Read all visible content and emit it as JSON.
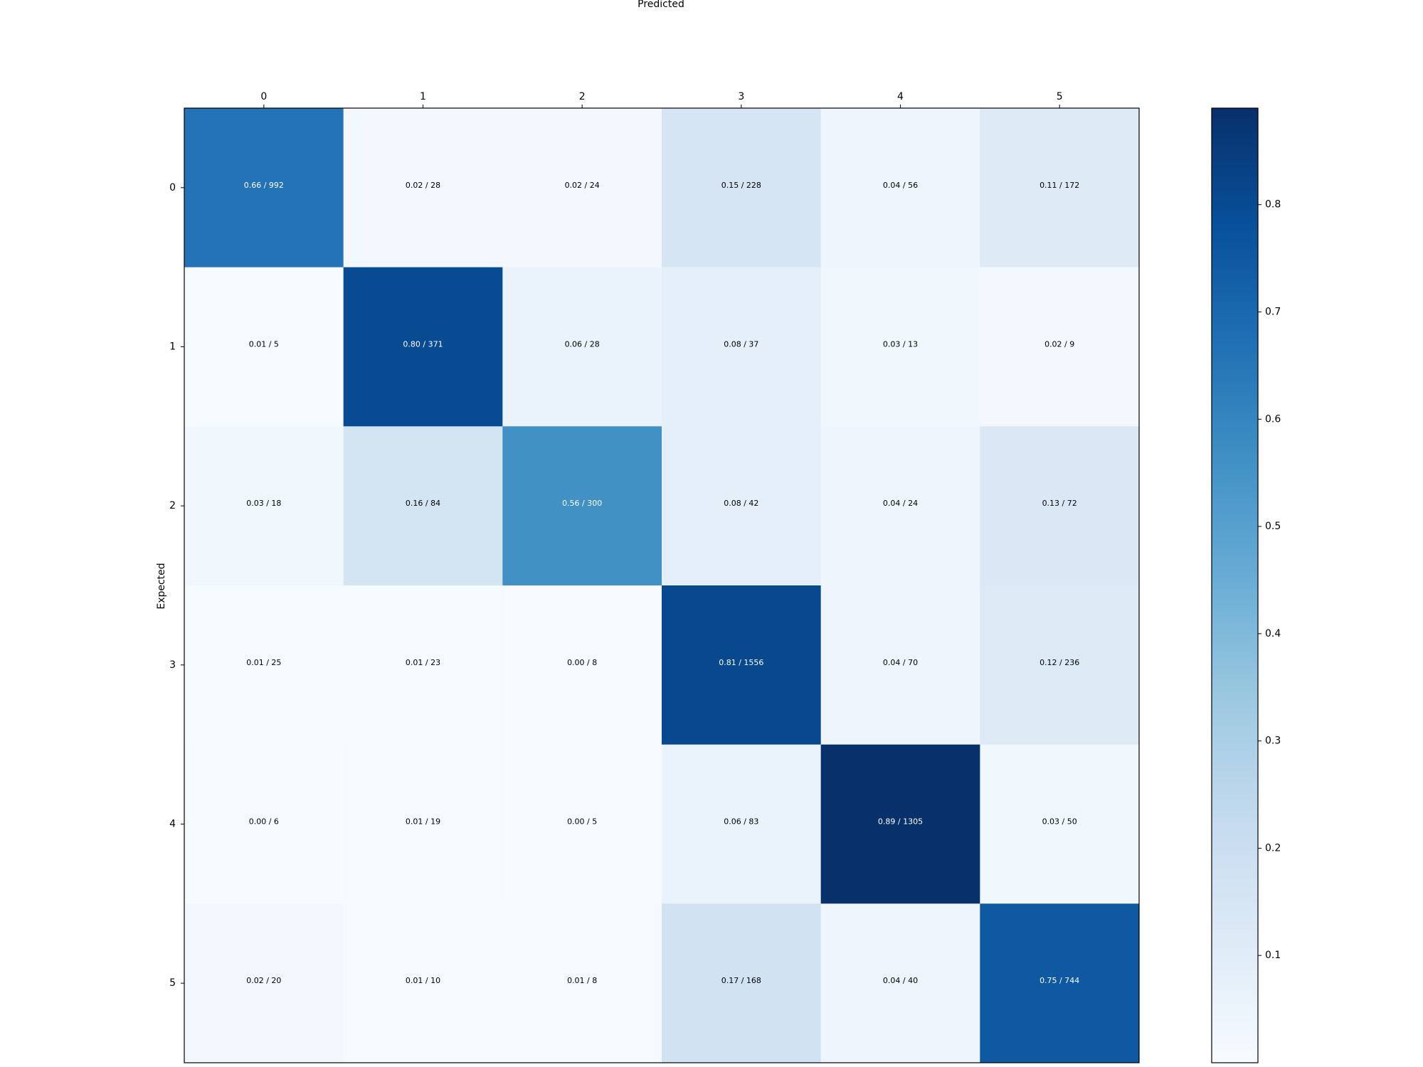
{
  "chart_data": {
    "type": "heatmap",
    "title": "",
    "xlabel": "Predicted",
    "ylabel": "Expected",
    "x_categories": [
      "0",
      "1",
      "2",
      "3",
      "4",
      "5"
    ],
    "y_categories": [
      "0",
      "1",
      "2",
      "3",
      "4",
      "5"
    ],
    "values": [
      [
        0.66,
        0.02,
        0.02,
        0.15,
        0.04,
        0.11
      ],
      [
        0.01,
        0.8,
        0.06,
        0.08,
        0.03,
        0.02
      ],
      [
        0.03,
        0.16,
        0.56,
        0.08,
        0.04,
        0.13
      ],
      [
        0.01,
        0.01,
        0.0,
        0.81,
        0.04,
        0.12
      ],
      [
        0.0,
        0.01,
        0.0,
        0.06,
        0.89,
        0.03
      ],
      [
        0.02,
        0.01,
        0.01,
        0.17,
        0.04,
        0.75
      ]
    ],
    "counts": [
      [
        992,
        28,
        24,
        228,
        56,
        172
      ],
      [
        5,
        371,
        28,
        37,
        13,
        9
      ],
      [
        18,
        84,
        300,
        42,
        24,
        72
      ],
      [
        25,
        23,
        8,
        1556,
        70,
        236
      ],
      [
        6,
        19,
        5,
        83,
        1305,
        50
      ],
      [
        20,
        10,
        8,
        168,
        40,
        744
      ]
    ],
    "cell_labels": [
      [
        "0.66 / 992",
        "0.02 / 28",
        "0.02 / 24",
        "0.15 / 228",
        "0.04 / 56",
        "0.11 / 172"
      ],
      [
        "0.01 / 5",
        "0.80 / 371",
        "0.06 / 28",
        "0.08 / 37",
        "0.03 / 13",
        "0.02 / 9"
      ],
      [
        "0.03 / 18",
        "0.16 / 84",
        "0.56 / 300",
        "0.08 / 42",
        "0.04 / 24",
        "0.13 / 72"
      ],
      [
        "0.01 / 25",
        "0.01 / 23",
        "0.00 / 8",
        "0.81 / 1556",
        "0.04 / 70",
        "0.12 / 236"
      ],
      [
        "0.00 / 6",
        "0.01 / 19",
        "0.00 / 5",
        "0.06 / 83",
        "0.89 / 1305",
        "0.03 / 50"
      ],
      [
        "0.02 / 20",
        "0.01 / 10",
        "0.01 / 8",
        "0.17 / 168",
        "0.04 / 40",
        "0.75 / 744"
      ]
    ],
    "colormap": "Blues",
    "color_range": [
      0.0,
      0.89
    ],
    "colorbar_ticks": [
      "0.1",
      "0.2",
      "0.3",
      "0.4",
      "0.5",
      "0.6",
      "0.7",
      "0.8"
    ],
    "colorbar_tick_values": [
      0.1,
      0.2,
      0.3,
      0.4,
      0.5,
      0.6,
      0.7,
      0.8
    ],
    "x_axis_position": "top",
    "grid": false,
    "legend": "colorbar-right"
  }
}
